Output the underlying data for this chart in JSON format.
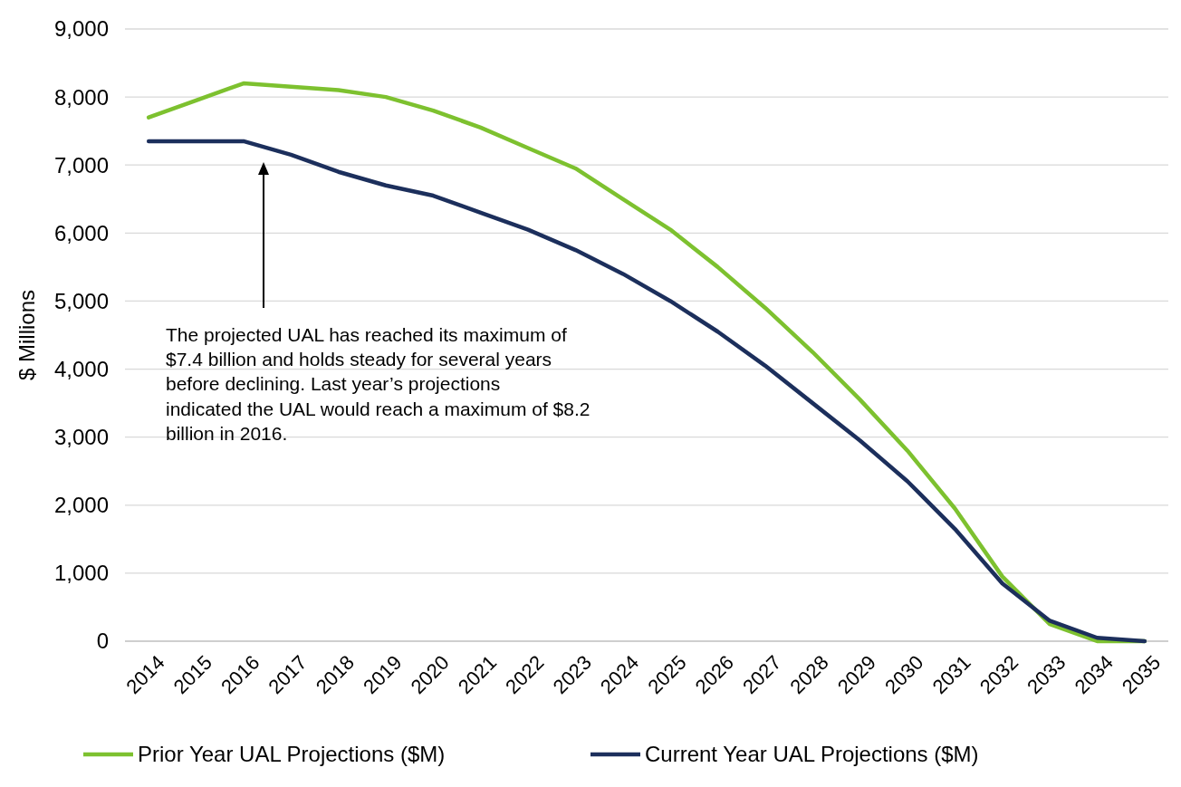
{
  "chart_data": {
    "type": "line",
    "ylabel": "$ Millions",
    "categories": [
      "2014",
      "2015",
      "2016",
      "2017",
      "2018",
      "2019",
      "2020",
      "2021",
      "2022",
      "2023",
      "2024",
      "2025",
      "2026",
      "2027",
      "2028",
      "2029",
      "2030",
      "2031",
      "2032",
      "2033",
      "2034",
      "2035"
    ],
    "series": [
      {
        "name": "Prior Year UAL Projections ($M)",
        "color": "#7dc12f",
        "values": [
          7700,
          7950,
          8200,
          8150,
          8100,
          8000,
          7800,
          7550,
          7250,
          6950,
          6500,
          6050,
          5500,
          4900,
          4250,
          3550,
          2800,
          1950,
          950,
          250,
          0,
          0
        ]
      },
      {
        "name": "Current  Year UAL Projections ($M)",
        "color": "#1c2f5c",
        "values": [
          7350,
          7350,
          7350,
          7150,
          6900,
          6700,
          6550,
          6300,
          6050,
          5750,
          5400,
          5000,
          4550,
          4050,
          3500,
          2950,
          2350,
          1650,
          850,
          300,
          50,
          0
        ]
      }
    ],
    "ylim": [
      0,
      9000
    ],
    "yticks": [
      {
        "value": 0,
        "label": "0"
      },
      {
        "value": 1000,
        "label": "1,000"
      },
      {
        "value": 2000,
        "label": "2,000"
      },
      {
        "value": 3000,
        "label": "3,000"
      },
      {
        "value": 4000,
        "label": "4,000"
      },
      {
        "value": 5000,
        "label": "5,000"
      },
      {
        "value": 6000,
        "label": "6,000"
      },
      {
        "value": 7000,
        "label": "7,000"
      },
      {
        "value": 8000,
        "label": "8,000"
      },
      {
        "value": 9000,
        "label": "9,000"
      }
    ],
    "grid": "y",
    "legend": "bottom",
    "marker": "none",
    "line_style": "solid",
    "annotations": [
      "The projected UAL has reached its maximum of $7.4 billion and holds steady for several years before declining. Last year’s projections indicated the UAL would reach a maximum of $8.2 billion in 2016."
    ]
  }
}
